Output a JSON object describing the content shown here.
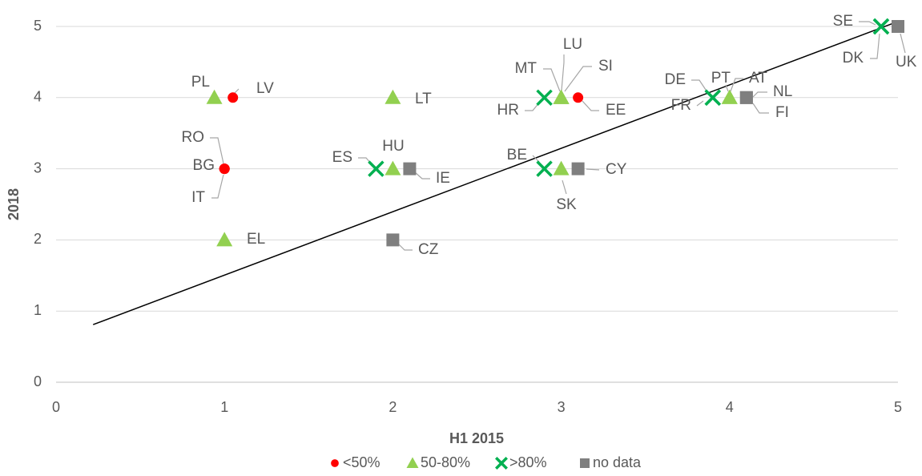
{
  "chart_data": {
    "type": "scatter",
    "x_label": "H1 2015",
    "y_label": "2018",
    "xlim": [
      0,
      5
    ],
    "ylim": [
      0,
      5
    ],
    "xticks": [
      0,
      1,
      2,
      3,
      4,
      5
    ],
    "yticks": [
      0,
      1,
      2,
      3,
      4,
      5
    ],
    "grid": true,
    "legend": "bottom",
    "trendline": {
      "color": "#000000",
      "x": [
        0.22,
        5
      ],
      "y": [
        0.81,
        5.07
      ]
    },
    "series": [
      {
        "name": "<50%",
        "color": "#ff0000",
        "marker": "circle",
        "labels": [
          "LV",
          "RO",
          "BG",
          "IT",
          "EE"
        ],
        "x": [
          1.05,
          1,
          1,
          1,
          3.1
        ],
        "values": [
          4,
          3,
          3,
          3,
          4
        ]
      },
      {
        "name": "50-80%",
        "color": "#92d050",
        "marker": "triangle",
        "labels": [
          "PL",
          "EL",
          "LT",
          "HU",
          "MT",
          "LU",
          "SI",
          "SK",
          "PT",
          "AT"
        ],
        "x": [
          0.94,
          1,
          2,
          2,
          3,
          3,
          3,
          3,
          4,
          4
        ],
        "values": [
          4,
          2,
          4,
          3,
          4,
          4,
          4,
          3,
          4,
          4
        ]
      },
      {
        "name": ">80%",
        "color": "#00b050",
        "marker": "cross",
        "labels": [
          "ES",
          "HR",
          "BE",
          "DE",
          "FR",
          "SE",
          "DK"
        ],
        "x": [
          1.9,
          2.9,
          2.9,
          3.9,
          3.9,
          4.9,
          4.9
        ],
        "values": [
          3,
          4,
          3,
          4,
          4,
          5,
          5
        ]
      },
      {
        "name": "no data",
        "color": "#7f7f7f",
        "marker": "square",
        "labels": [
          "IE",
          "CZ",
          "CY",
          "NL",
          "FI",
          "UK"
        ],
        "x": [
          2.1,
          2,
          3.1,
          4.1,
          4.1,
          5
        ],
        "values": [
          3,
          2,
          3,
          4,
          4,
          5
        ]
      }
    ]
  }
}
